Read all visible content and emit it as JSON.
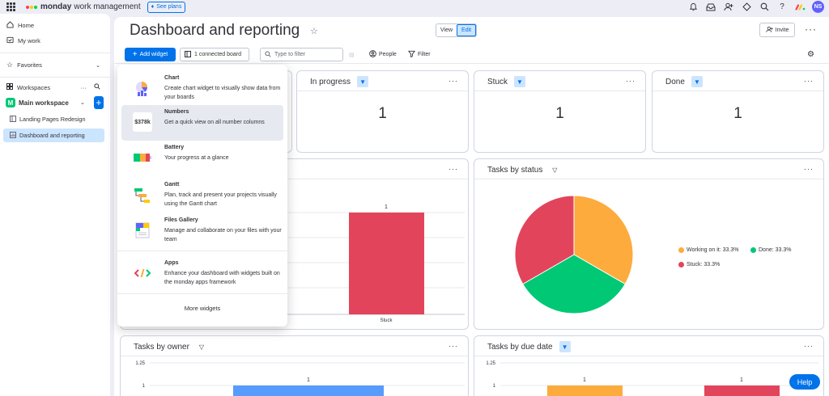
{
  "topbar": {
    "brand": "monday",
    "brand_sub": "work management",
    "plans_label": "See plans",
    "avatar_initials": "NS",
    "icons": [
      "bell-icon",
      "inbox-icon",
      "invite-members-icon",
      "apps-icon",
      "search-icon",
      "help-icon",
      "monday-logo-icon"
    ]
  },
  "sidebar": {
    "home": "Home",
    "my_work": "My work",
    "favorites": "Favorites",
    "workspaces": "Workspaces",
    "workspace_name": "Main workspace",
    "workspace_badge": "M",
    "boards": [
      {
        "label": "Landing Pages Redesign",
        "active": false
      },
      {
        "label": "Dashboard and reporting",
        "active": true
      }
    ]
  },
  "header": {
    "title": "Dashboard and reporting",
    "view_label": "View",
    "edit_label": "Edit",
    "invite_label": "Invite"
  },
  "toolbar": {
    "add_widget": "Add widget",
    "connected": "1 connected board",
    "filter_placeholder": "Type to filter",
    "people": "People",
    "filter": "Filter"
  },
  "widgets_menu": {
    "items": [
      {
        "title": "Chart",
        "desc": "Create chart widget to visually show data from your boards"
      },
      {
        "title": "Numbers",
        "desc": "Get a quick view on all number columns",
        "icon_text": "$378k"
      },
      {
        "title": "Battery",
        "desc": "Your progress at a glance"
      },
      {
        "title": "Gantt",
        "desc": "Plan, track and present your projects visually using the Gantt chart"
      },
      {
        "title": "Files Gallery",
        "desc": "Manage and collaborate on your files with your team"
      },
      {
        "title": "Apps",
        "desc": "Enhance your dashboard with widgets built on the monday apps framework"
      }
    ],
    "more": "More widgets"
  },
  "cards": {
    "in_progress": {
      "title": "In progress",
      "value": "1"
    },
    "stuck": {
      "title": "Stuck",
      "value": "1"
    },
    "done": {
      "title": "Done",
      "value": "1"
    },
    "tasks_by_status": "Tasks by status",
    "tasks_by_owner": "Tasks by owner",
    "tasks_by_due_date": "Tasks by due date"
  },
  "colors": {
    "working": "#fdab3d",
    "done": "#00c875",
    "stuck": "#e2445c",
    "primary": "#0073ea",
    "blue_bar": "#579bfc"
  },
  "help_label": "Help",
  "chart_data": [
    {
      "type": "bar",
      "categories": [
        "Stuck"
      ],
      "values": [
        1
      ],
      "data_labels": [
        "1"
      ],
      "colors": [
        "#e2445c"
      ]
    },
    {
      "type": "pie",
      "title": "Tasks by status",
      "labels": [
        "Working on it",
        "Done",
        "Stuck"
      ],
      "values": [
        33.3,
        33.3,
        33.3
      ],
      "legend": [
        "Working on it: 33.3%",
        "Done: 33.3%",
        "Stuck: 33.3%"
      ],
      "colors": [
        "#fdab3d",
        "#00c875",
        "#e2445c"
      ],
      "legend_position": "right"
    },
    {
      "type": "bar",
      "title": "Tasks by owner",
      "y_ticks": [
        "1.25",
        "1"
      ],
      "values": [
        1
      ],
      "data_labels": [
        "1"
      ],
      "colors": [
        "#579bfc"
      ]
    },
    {
      "type": "bar",
      "title": "Tasks by due date",
      "y_ticks": [
        "1.25",
        "1"
      ],
      "values": [
        1,
        1
      ],
      "data_labels": [
        "1",
        "1"
      ],
      "colors": [
        "#fdab3d",
        "#e2445c"
      ]
    }
  ]
}
